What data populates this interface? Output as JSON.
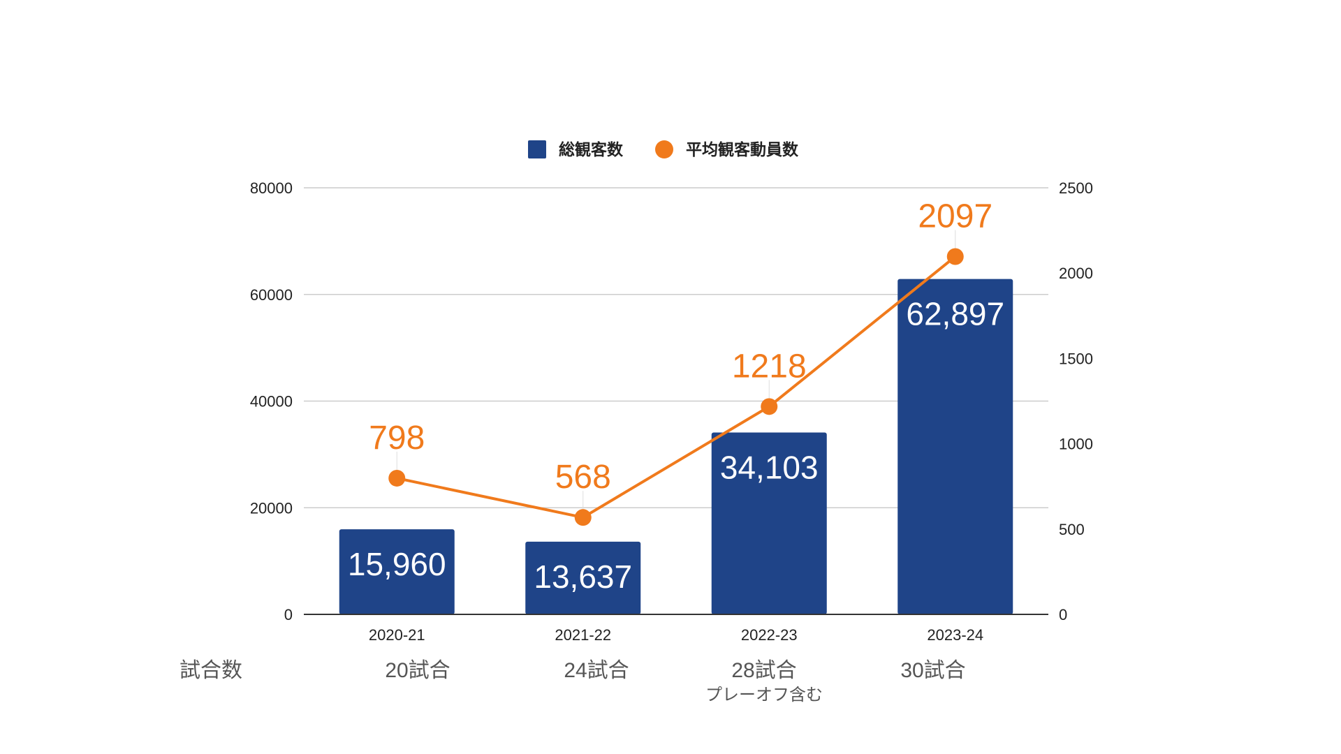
{
  "chart_data": {
    "type": "bar+line",
    "categories": [
      "2020-21",
      "2021-22",
      "2022-23",
      "2023-24"
    ],
    "series": [
      {
        "name": "総観客数",
        "type": "bar",
        "axis": "left",
        "color": "#1f4488",
        "values": [
          15960,
          13637,
          34103,
          62897
        ],
        "labels": [
          "15,960",
          "13,637",
          "34,103",
          "62,897"
        ]
      },
      {
        "name": "平均観客動員数",
        "type": "line",
        "axis": "right",
        "color": "#f07a1c",
        "values": [
          798,
          568,
          1218,
          2097
        ],
        "labels": [
          "798",
          "568",
          "1218",
          "2097"
        ]
      }
    ],
    "left_axis": {
      "ylim": [
        0,
        80000
      ],
      "ticks": [
        "0",
        "20000",
        "40000",
        "60000",
        "80000"
      ]
    },
    "right_axis": {
      "ylim": [
        0,
        2500
      ],
      "ticks": [
        "0",
        "500",
        "1000",
        "1500",
        "2000",
        "2500"
      ]
    },
    "grid": true,
    "legend": "top",
    "games_row": {
      "label": "試合数",
      "values": [
        "20試合",
        "24試合",
        "28試合",
        "30試合"
      ],
      "notes": [
        "",
        "",
        "プレーオフ含む",
        ""
      ]
    }
  }
}
